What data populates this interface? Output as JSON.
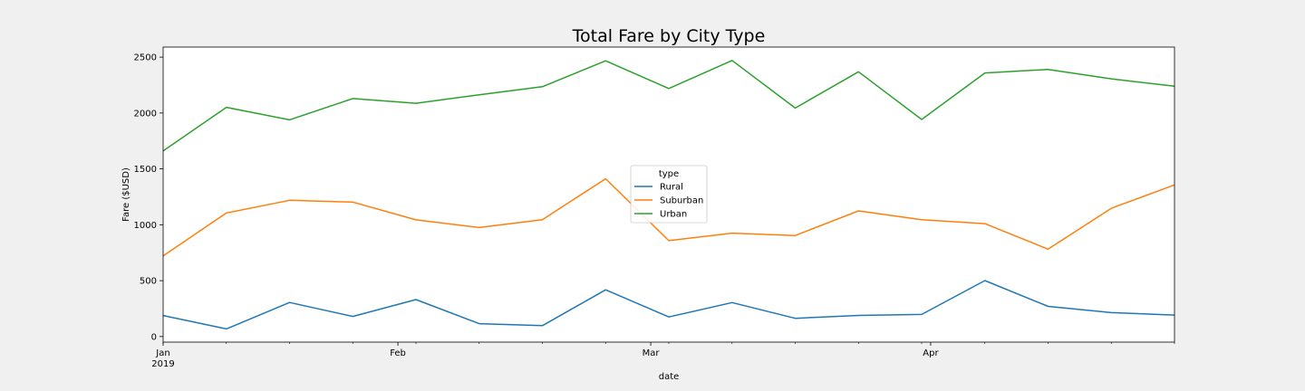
{
  "chart_data": {
    "type": "line",
    "title": "Total Fare by City Type",
    "xlabel": "date",
    "ylabel": "Fare ($USD)",
    "x": [
      "2019-01-06",
      "2019-01-13",
      "2019-01-20",
      "2019-01-27",
      "2019-02-03",
      "2019-02-10",
      "2019-02-17",
      "2019-02-24",
      "2019-03-03",
      "2019-03-10",
      "2019-03-17",
      "2019-03-24",
      "2019-03-31",
      "2019-04-07",
      "2019-04-14",
      "2019-04-21",
      "2019-04-28"
    ],
    "x_ticks": [
      {
        "date": "2019-01-01",
        "label": "Jan",
        "sublabel": "2019"
      },
      {
        "date": "2019-02-01",
        "label": "Feb",
        "sublabel": ""
      },
      {
        "date": "2019-03-01",
        "label": "Mar",
        "sublabel": ""
      },
      {
        "date": "2019-04-01",
        "label": "Apr",
        "sublabel": ""
      }
    ],
    "xlim": [
      "2019-01-06",
      "2019-04-28"
    ],
    "ylim": [
      -50,
      2590
    ],
    "y_ticks": [
      0,
      500,
      1000,
      1500,
      2000,
      2500
    ],
    "grid": false,
    "legend": {
      "title": "type",
      "placement": "center"
    },
    "series": [
      {
        "name": "Rural",
        "color": "#1f77b4",
        "values": [
          188,
          68,
          305,
          180,
          331,
          115,
          97,
          418,
          175,
          304,
          163,
          189,
          198,
          501,
          270,
          214,
          192
        ]
      },
      {
        "name": "Suburban",
        "color": "#ff7f0e",
        "values": [
          722,
          1106,
          1219,
          1203,
          1044,
          975,
          1046,
          1412,
          858,
          925,
          904,
          1124,
          1046,
          1010,
          782,
          1148,
          1357
        ]
      },
      {
        "name": "Urban",
        "color": "#2ca02c",
        "values": [
          1661,
          2051,
          1939,
          2129,
          2087,
          2163,
          2235,
          2467,
          2219,
          2470,
          2044,
          2369,
          1942,
          2358,
          2390,
          2306,
          2239
        ]
      }
    ]
  }
}
